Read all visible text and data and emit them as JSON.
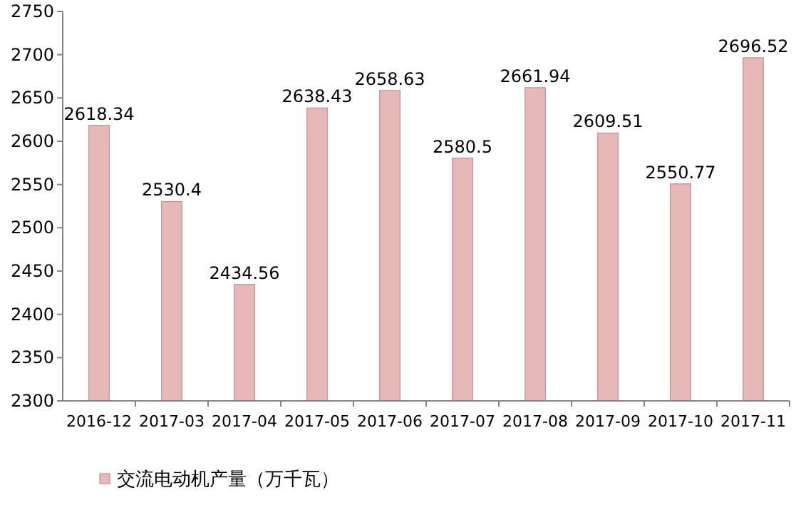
{
  "chart_data": {
    "type": "bar",
    "categories": [
      "2016-12",
      "2017-03",
      "2017-04",
      "2017-05",
      "2017-06",
      "2017-07",
      "2017-08",
      "2017-09",
      "2017-10",
      "2017-11"
    ],
    "series": [
      {
        "name": "交流电动机产量（万千瓦）",
        "color": "#e6b9b8",
        "values": [
          2618.34,
          2530.4,
          2434.56,
          2638.43,
          2658.63,
          2580.5,
          2661.94,
          2609.51,
          2550.77,
          2696.52
        ]
      }
    ],
    "ylim": [
      2300,
      2750
    ],
    "yticks": [
      2300,
      2350,
      2400,
      2450,
      2500,
      2550,
      2600,
      2650,
      2700,
      2750
    ],
    "grid": false,
    "legend": "bottom left",
    "data_labels": true
  }
}
